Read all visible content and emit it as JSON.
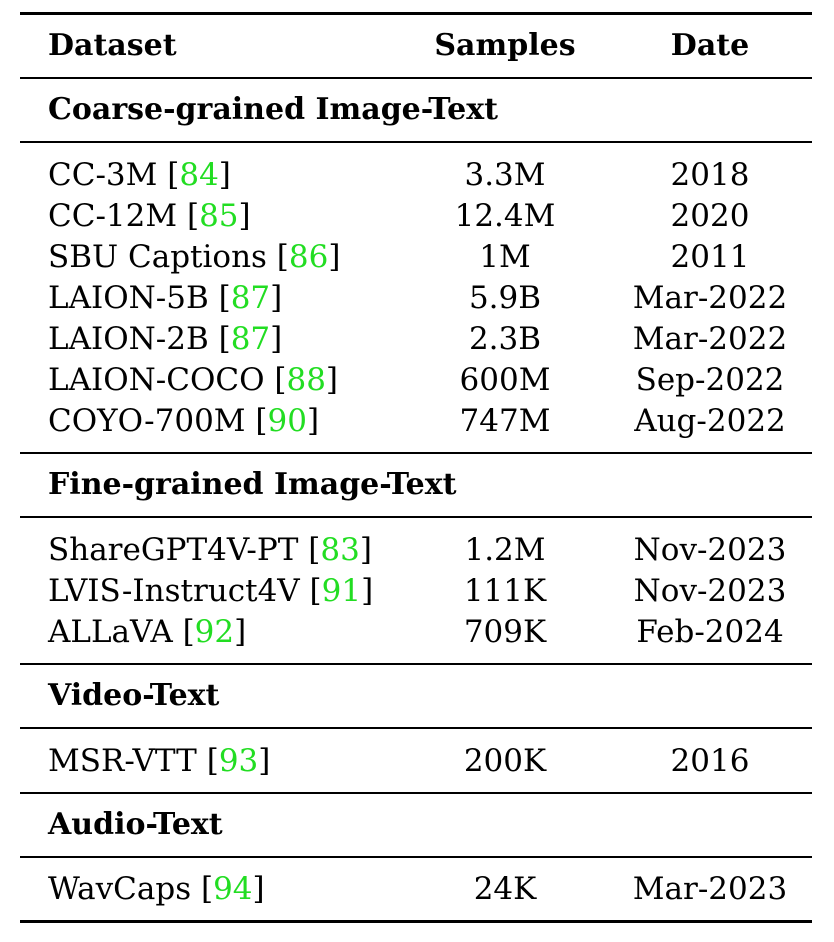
{
  "columns": [
    "Dataset",
    "Samples",
    "Date"
  ],
  "cite_color": "#22dd22",
  "sections": [
    {
      "title": "Coarse-grained Image-Text",
      "rows": [
        {
          "name": "CC-3M",
          "ref": "84",
          "samples": "3.3M",
          "date": "2018"
        },
        {
          "name": "CC-12M",
          "ref": "85",
          "samples": "12.4M",
          "date": "2020"
        },
        {
          "name": "SBU Captions",
          "ref": "86",
          "samples": "1M",
          "date": "2011"
        },
        {
          "name": "LAION-5B",
          "ref": "87",
          "samples": "5.9B",
          "date": "Mar-2022"
        },
        {
          "name": "LAION-2B",
          "ref": "87",
          "samples": "2.3B",
          "date": "Mar-2022"
        },
        {
          "name": "LAION-COCO",
          "ref": "88",
          "samples": "600M",
          "date": "Sep-2022"
        },
        {
          "name": "COYO-700M",
          "ref": "90",
          "samples": "747M",
          "date": "Aug-2022"
        }
      ]
    },
    {
      "title": "Fine-grained Image-Text",
      "rows": [
        {
          "name": "ShareGPT4V-PT",
          "ref": "83",
          "samples": "1.2M",
          "date": "Nov-2023"
        },
        {
          "name": "LVIS-Instruct4V",
          "ref": "91",
          "samples": "111K",
          "date": "Nov-2023"
        },
        {
          "name": "ALLaVA",
          "ref": "92",
          "samples": "709K",
          "date": "Feb-2024"
        }
      ]
    },
    {
      "title": "Video-Text",
      "rows": [
        {
          "name": "MSR-VTT",
          "ref": "93",
          "samples": "200K",
          "date": "2016"
        }
      ]
    },
    {
      "title": "Audio-Text",
      "rows": [
        {
          "name": "WavCaps",
          "ref": "94",
          "samples": "24K",
          "date": "Mar-2023"
        }
      ]
    }
  ]
}
